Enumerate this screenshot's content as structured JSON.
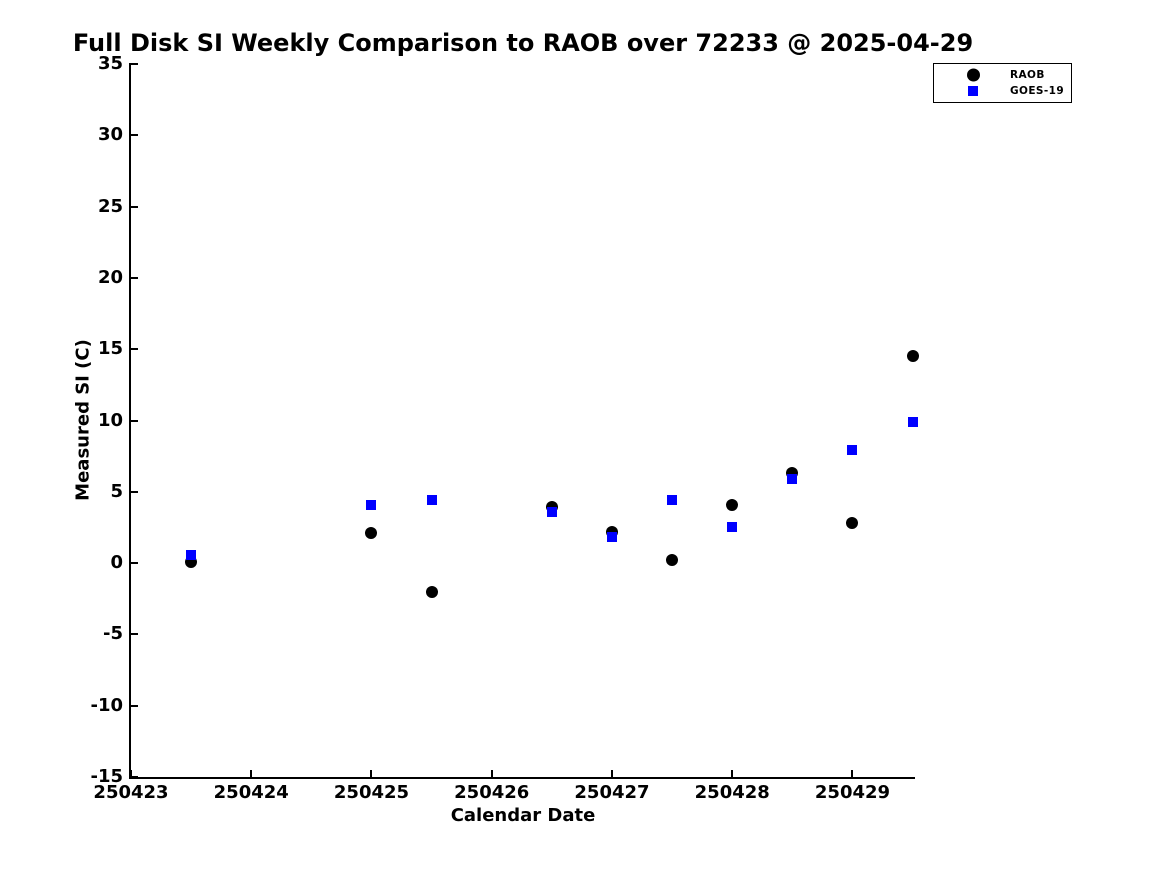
{
  "chart_data": {
    "type": "scatter",
    "title": "Full Disk SI Weekly Comparison to RAOB over 72233 @ 2025-04-29",
    "xlabel": "Calendar Date",
    "ylabel": "Measured SI (C)",
    "xlim": [
      250423,
      250429.52
    ],
    "ylim": [
      -15,
      35
    ],
    "x_ticks": [
      250423,
      250424,
      250425,
      250426,
      250427,
      250428,
      250429
    ],
    "y_ticks": [
      -15,
      -10,
      -5,
      0,
      5,
      10,
      15,
      20,
      25,
      30,
      35
    ],
    "grid": false,
    "legend_position": "top-right",
    "x": [
      250423.5,
      250425,
      250425.5,
      250426.5,
      250427,
      250427.5,
      250428,
      250428.5,
      250429,
      250429.5
    ],
    "series": [
      {
        "name": "RAOB",
        "marker": "circle",
        "color": "#000000",
        "values": [
          0.1,
          2.1,
          -2.0,
          3.9,
          2.2,
          0.2,
          4.1,
          6.3,
          2.8,
          14.5
        ]
      },
      {
        "name": "GOES-19",
        "marker": "square",
        "color": "#0000ff",
        "values": [
          0.6,
          4.1,
          4.4,
          3.6,
          1.8,
          4.4,
          2.5,
          5.9,
          7.9,
          9.9
        ]
      }
    ]
  }
}
